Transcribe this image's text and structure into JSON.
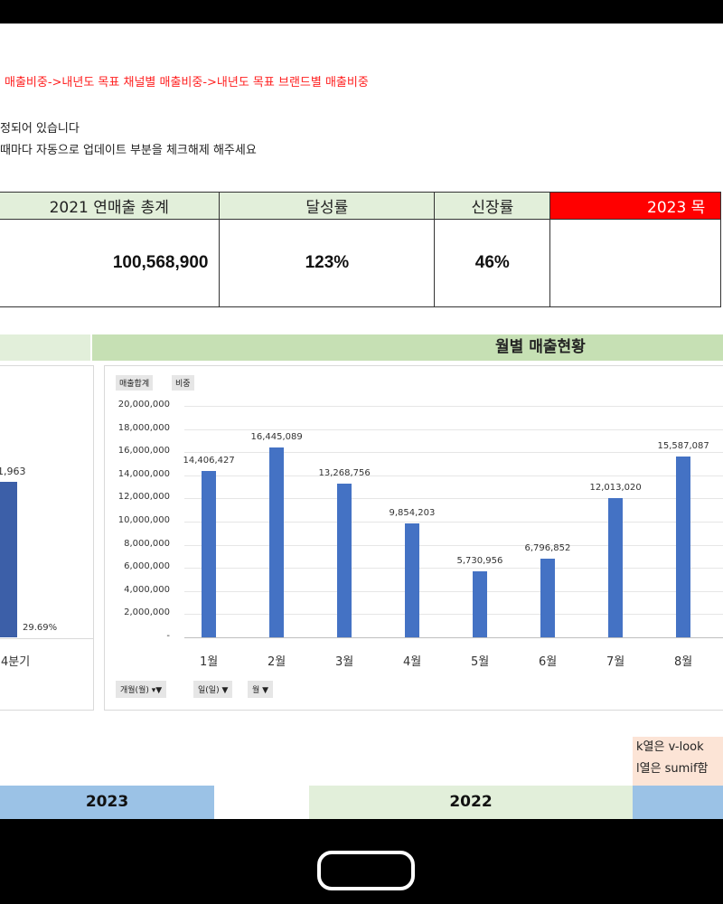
{
  "nav_text": "매출비중->내년도 목표 채널별 매출비중->내년도 목표 브랜드별 매출비중",
  "notes": [
    "정되어 있습니다",
    "때마다 자동으로 업데이트 부분을 체크해제 해주세요"
  ],
  "summary": {
    "headers": [
      "2021 연매출 총계",
      "달성률",
      "신장률",
      "2023 목"
    ],
    "values": [
      "100,568,900",
      "123%",
      "46%",
      ""
    ]
  },
  "section_title": "월별 매출현황",
  "left_chart": {
    "bar_label": "1,963",
    "pct_label": "29.69%",
    "x_label": "4분기"
  },
  "chart_buttons": [
    "매출합계",
    "비중"
  ],
  "filter_buttons": [
    "개월(월) ▾▼",
    "일(일) ▼",
    "월 ▼"
  ],
  "chart_data": {
    "type": "bar",
    "categories": [
      "1월",
      "2월",
      "3월",
      "4월",
      "5월",
      "6월",
      "7월",
      "8월"
    ],
    "series": [
      {
        "values": [
          14406427,
          16445089,
          13268756,
          9854203,
          5730956,
          6796852,
          12013020,
          15587087
        ]
      }
    ],
    "data_labels": [
      "14,406,427",
      "16,445,089",
      "13,268,756",
      "9,854,203",
      "5,730,956",
      "6,796,852",
      "12,013,020",
      "15,587,087"
    ],
    "y_ticks": [
      "20,000,000",
      "18,000,000",
      "16,000,000",
      "14,000,000",
      "12,000,000",
      "10,000,000",
      "8,000,000",
      "6,000,000",
      "4,000,000",
      "2,000,000",
      "-"
    ],
    "ylim": [
      0,
      20000000
    ],
    "bar_color": "#4472c4",
    "grid": true
  },
  "side_notes": [
    "k열은 v-look",
    "l열은 sumif함"
  ],
  "years": [
    "2023",
    "2022"
  ],
  "colors": {
    "header_green": "#e2efda",
    "band_green": "#c6e0b4",
    "red": "#ff0000",
    "blue_band": "#9bc2e6",
    "peach": "#fce4d6"
  }
}
